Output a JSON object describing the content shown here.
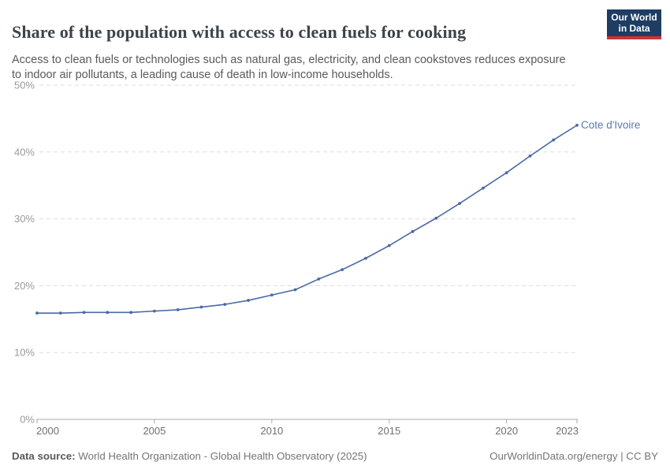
{
  "header": {
    "title": "Share of the population with access to clean fuels for cooking",
    "subtitle_lines": [
      "Access to clean fuels or technologies such as natural gas, electricity, and clean cookstoves reduces exposure",
      "to indoor air pollutants, a leading cause of death in low-income households."
    ],
    "logo": {
      "line1": "Our World",
      "line2": "in Data"
    }
  },
  "chart_data": {
    "type": "line",
    "title": "Share of the population with access to clean fuels for cooking",
    "x": [
      2000,
      2001,
      2002,
      2003,
      2004,
      2005,
      2006,
      2007,
      2008,
      2009,
      2010,
      2011,
      2012,
      2013,
      2014,
      2015,
      2016,
      2017,
      2018,
      2019,
      2020,
      2021,
      2022,
      2023
    ],
    "series": [
      {
        "name": "Cote d'Ivoire",
        "values": [
          15.9,
          15.9,
          16.0,
          16.0,
          16.0,
          16.2,
          16.4,
          16.8,
          17.2,
          17.8,
          18.6,
          19.4,
          21.0,
          22.4,
          24.1,
          26.0,
          28.1,
          30.1,
          32.3,
          34.6,
          36.9,
          39.4,
          41.8,
          44.0
        ]
      }
    ],
    "xlim": [
      2000,
      2023
    ],
    "ylim": [
      0,
      50
    ],
    "x_ticks": [
      2000,
      2005,
      2010,
      2015,
      2020,
      2023
    ],
    "y_ticks": [
      0,
      10,
      20,
      30,
      40,
      50
    ],
    "y_tick_suffix": "%",
    "grid": "horizontal-dashed",
    "legend": "line-end-label"
  },
  "colors": {
    "line": "#4a69a5",
    "entity_label": "#5b79b2",
    "grid": "#dedede",
    "axis": "#a8a8a8",
    "y_tick_label": "#9a9a9a",
    "x_tick_label": "#6f6f6f",
    "logo_bg": "#1d3d63",
    "logo_accent": "#cf3235"
  },
  "footer": {
    "datasource_label": "Data source:",
    "datasource_value": " World Health Organization - Global Health Observatory (2025)",
    "link": "OurWorldinData.org/energy",
    "separator": " | ",
    "license": "CC BY"
  }
}
